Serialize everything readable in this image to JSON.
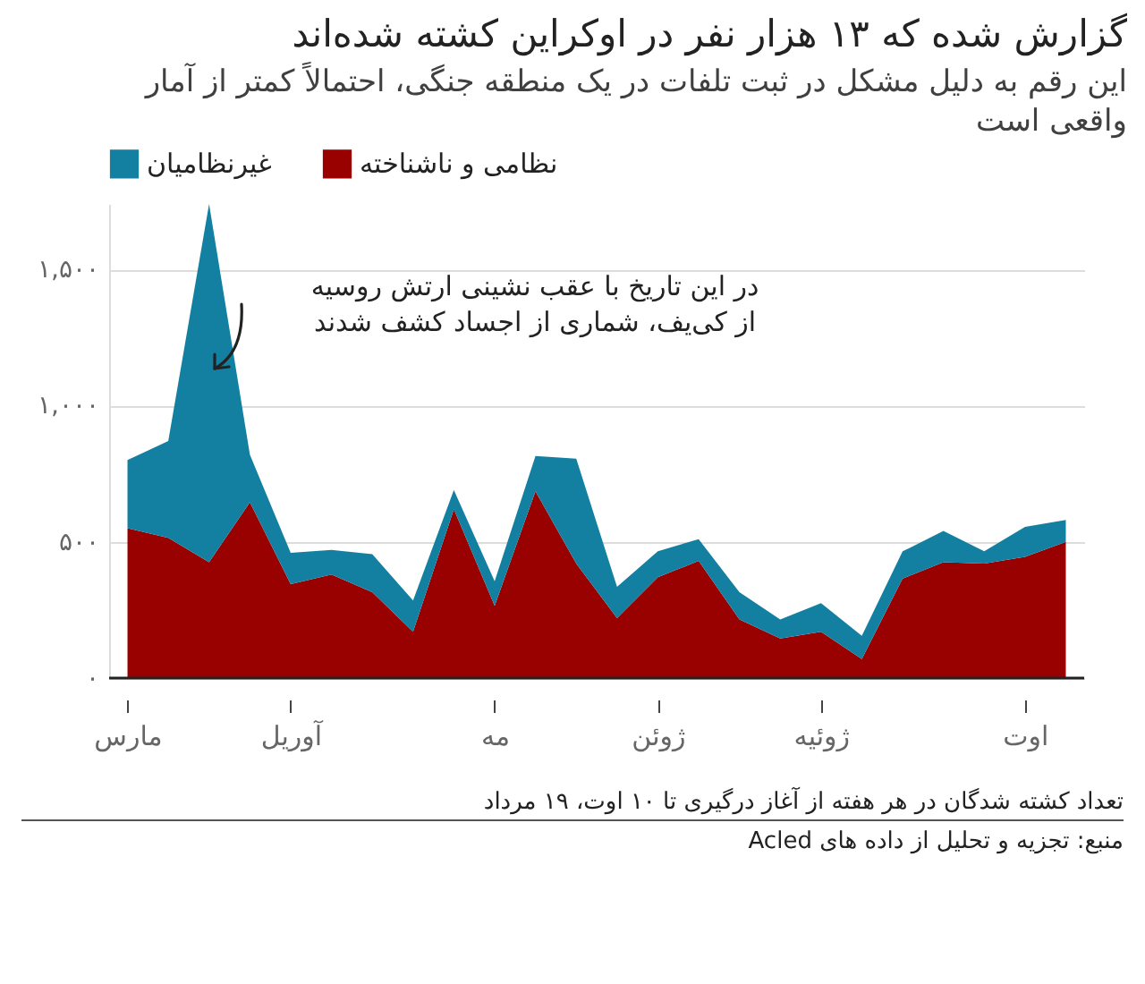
{
  "chart_data": {
    "type": "area",
    "stacked": true,
    "title": "گزارش شده که ۱۳ هزار نفر در اوکراین کشته شده‌اند",
    "subtitle": "این رقم به دلیل مشکل در ثبت تلفات در یک منطقه جنگی، احتمالاً کمتر از آمار واقعی است",
    "categories": [
      "مارس",
      null,
      null,
      null,
      "آوریل",
      null,
      null,
      null,
      null,
      "مه",
      null,
      null,
      null,
      "ژوئن",
      null,
      null,
      null,
      "ژوئیه",
      null,
      null,
      null,
      null,
      "اوت",
      null
    ],
    "series": [
      {
        "name": "نظامی و ناشناخته",
        "color": "#990000",
        "values": [
          550,
          515,
          425,
          645,
          345,
          380,
          315,
          170,
          620,
          265,
          685,
          420,
          220,
          370,
          430,
          215,
          145,
          170,
          70,
          365,
          425,
          420,
          445,
          500
        ]
      },
      {
        "name": "غیرنظامیان",
        "color": "#1380a1",
        "values": [
          250,
          355,
          1315,
          175,
          115,
          90,
          140,
          115,
          70,
          90,
          130,
          385,
          115,
          95,
          80,
          100,
          70,
          105,
          85,
          100,
          115,
          45,
          110,
          80
        ]
      }
    ],
    "yticks": [
      {
        "value": 0,
        "label": "۰"
      },
      {
        "value": 500,
        "label": "۵۰۰"
      },
      {
        "value": 1000,
        "label": "۱,۰۰۰"
      },
      {
        "value": 1500,
        "label": "۱,۵۰۰"
      }
    ],
    "ylim": [
      0,
      1740
    ],
    "grid": "y",
    "legend": "top left",
    "annotations": [
      "در این تاریخ با عقب نشینی ارتش روسیه\nاز کی‌یف، شماری از اجساد کشف شدند",
      "تعداد کشته شدگان در هر هفته از آغاز درگیری تا ۱۰ اوت، ۱۹ مرداد",
      "منبع: تجزیه و تحلیل از داده های Acled"
    ]
  }
}
